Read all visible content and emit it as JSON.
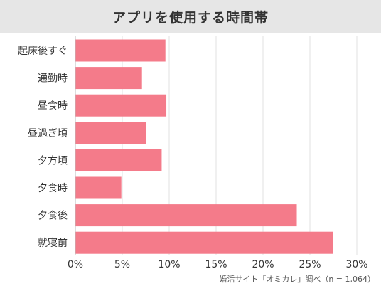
{
  "chart_data": {
    "type": "bar",
    "orientation": "horizontal",
    "title": "アプリを使用する時間帯",
    "categories": [
      "起床後すぐ",
      "通勤時",
      "昼食時",
      "昼過ぎ頃",
      "夕方頃",
      "夕食時",
      "夕食後",
      "就寝前"
    ],
    "values": [
      9.6,
      7.1,
      9.7,
      7.5,
      9.2,
      4.9,
      23.6,
      27.5
    ],
    "xlim": [
      0,
      30
    ],
    "xticks": [
      0,
      5,
      10,
      15,
      20,
      25,
      30
    ],
    "tick_suffix": "%",
    "grid": "vertical",
    "bar_color": "#f47b8a",
    "source": "婚活サイト「オミカレ」調べ（n = 1,064）"
  }
}
